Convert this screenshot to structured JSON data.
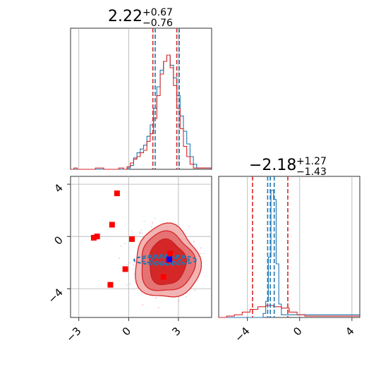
{
  "chart_data": [
    {
      "type": "histogram",
      "panel": "top-left",
      "title": {
        "value": "2.22",
        "plus": "+0.67",
        "minus": "−0.76"
      },
      "xlim": [
        -3.5,
        5.0
      ],
      "grid": true,
      "series": [
        {
          "name": "",
          "color": "#1f77b4",
          "x": [
            -3.5,
            -0.1,
            0.1,
            0.3,
            0.5,
            0.7,
            0.9,
            1.1,
            1.3,
            1.5,
            1.7,
            1.9,
            2.1,
            2.3,
            2.5,
            2.7,
            2.9,
            3.1,
            3.3,
            3.5,
            3.7,
            3.9,
            4.1,
            5.0
          ],
          "y": [
            0,
            0.01,
            0.03,
            0.09,
            0.13,
            0.16,
            0.19,
            0.26,
            0.35,
            0.48,
            0.65,
            0.78,
            0.85,
            0.9,
            0.82,
            0.72,
            0.58,
            0.42,
            0.3,
            0.2,
            0.1,
            0.04,
            0.01,
            0
          ]
        },
        {
          "name": "",
          "color": "#d62728",
          "x": [
            -3.5,
            -3.3,
            -3.1,
            -2.0,
            -1.5,
            -0.6,
            -0.3,
            -0.1,
            0.1,
            0.3,
            0.5,
            0.7,
            0.9,
            1.1,
            1.3,
            1.5,
            1.7,
            1.9,
            2.1,
            2.3,
            2.5,
            2.7,
            2.9,
            3.1,
            3.3,
            3.5,
            3.7,
            3.9,
            4.1,
            5.0
          ],
          "y": [
            0,
            0.01,
            0,
            0.01,
            0,
            0.01,
            0,
            0.02,
            0.05,
            0.08,
            0.1,
            0.13,
            0.15,
            0.22,
            0.28,
            0.4,
            0.58,
            0.75,
            0.85,
            0.9,
            0.8,
            0.66,
            0.48,
            0.32,
            0.18,
            0.1,
            0.04,
            0.01,
            0.01,
            0
          ]
        }
      ],
      "vlines": [
        {
          "x": 1.46,
          "color": "#d62728"
        },
        {
          "x": 1.6,
          "color": "#1f77b4"
        },
        {
          "x": 2.9,
          "color": "#d62728"
        },
        {
          "x": 3.05,
          "color": "#1f77b4"
        }
      ]
    },
    {
      "type": "scatter",
      "panel": "bottom-left",
      "xlim": [
        -3.5,
        5.0
      ],
      "ylim": [
        -6.2,
        4.6
      ],
      "xticks": [
        "−3",
        "0",
        "3"
      ],
      "xtick_values": [
        -3,
        0,
        3
      ],
      "yticks": [
        "4",
        "0",
        "−4"
      ],
      "ytick_values": [
        4,
        0,
        -4
      ],
      "grid": true,
      "red_contours_center": [
        2.3,
        -2.0
      ],
      "blue_contours_center": [
        2.2,
        -1.8
      ],
      "series": [
        {
          "name": "",
          "color": "#ff0000",
          "marker": "square",
          "points": [
            [
              -0.7,
              3.3
            ],
            [
              -1.0,
              0.9
            ],
            [
              -1.9,
              0.0
            ],
            [
              -2.1,
              -0.1
            ],
            [
              0.2,
              -0.2
            ],
            [
              -0.2,
              -2.5
            ],
            [
              -1.1,
              -3.7
            ],
            [
              2.5,
              -1.3
            ],
            [
              2.1,
              -3.1
            ],
            [
              2.4,
              -1.8
            ]
          ]
        },
        {
          "name": "",
          "color": "#0000ff",
          "marker": "square",
          "points": [
            [
              2.45,
              -1.75
            ]
          ]
        }
      ]
    },
    {
      "type": "histogram",
      "panel": "bottom-right",
      "title": {
        "value": "−2.18",
        "plus": "+1.27",
        "minus": "−1.43"
      },
      "xlim": [
        -6.2,
        4.6
      ],
      "xticks": [
        "−4",
        "0",
        "4"
      ],
      "xtick_values": [
        -4,
        0,
        4
      ],
      "grid": true,
      "series": [
        {
          "name": "",
          "color": "#1f77b4",
          "x": [
            -6.2,
            -2.8,
            -2.6,
            -2.4,
            -2.2,
            -2.0,
            -1.8,
            -1.6,
            -1.4,
            4.6
          ],
          "y": [
            0,
            0.03,
            0.12,
            0.45,
            0.95,
            0.88,
            0.4,
            0.1,
            0.02,
            0
          ]
        },
        {
          "name": "",
          "color": "#d62728",
          "x": [
            -6.2,
            -5.6,
            -5.0,
            -4.4,
            -3.8,
            -3.2,
            -2.6,
            -2.0,
            -1.4,
            -0.8,
            -0.2,
            0.4,
            4.6
          ],
          "y": [
            0,
            0.01,
            0.02,
            0.04,
            0.06,
            0.08,
            0.09,
            0.08,
            0.07,
            0.04,
            0.02,
            0.01,
            0
          ]
        }
      ],
      "vlines": [
        {
          "x": -3.61,
          "color": "#d62728"
        },
        {
          "x": -2.45,
          "color": "#1f77b4"
        },
        {
          "x": -2.25,
          "color": "#1f77b4"
        },
        {
          "x": -1.95,
          "color": "#1f77b4"
        },
        {
          "x": -0.91,
          "color": "#d62728"
        }
      ]
    }
  ]
}
